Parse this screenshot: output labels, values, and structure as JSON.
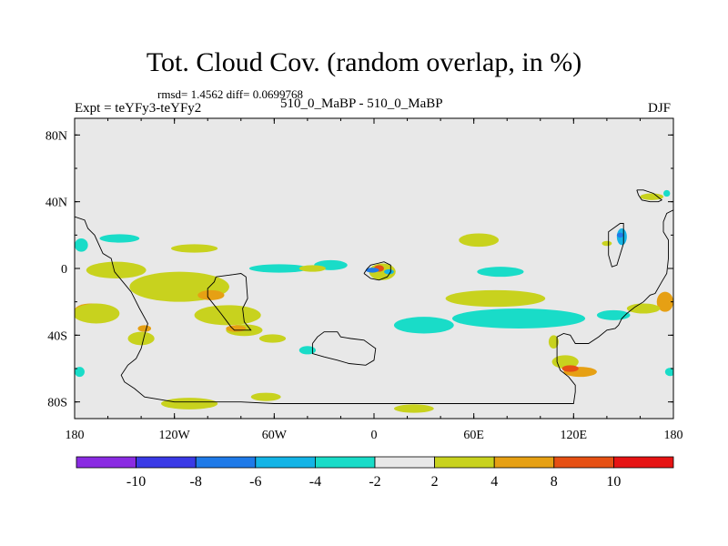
{
  "title": "Tot. Cloud Cov. (random overlap, in %)",
  "stats": "rmsd= 1.4562 diff= 0.0699768",
  "expt": "Expt = teYFy3-teYFy2",
  "case": "510_0_MaBP - 510_0_MaBP",
  "season": "DJF",
  "chart_data": {
    "type": "heatmap",
    "title": "Tot. Cloud Cov. (random overlap, in %)",
    "xlabel": "",
    "ylabel": "",
    "xlim": [
      -180,
      180
    ],
    "ylim": [
      -90,
      90
    ],
    "x_ticks": [
      {
        "value": -180,
        "label": "180"
      },
      {
        "value": -120,
        "label": "120W"
      },
      {
        "value": -60,
        "label": "60W"
      },
      {
        "value": 0,
        "label": "0"
      },
      {
        "value": 60,
        "label": "60E"
      },
      {
        "value": 120,
        "label": "120E"
      },
      {
        "value": 180,
        "label": "180"
      }
    ],
    "y_ticks": [
      {
        "value": 80,
        "label": "80N"
      },
      {
        "value": 40,
        "label": "40N"
      },
      {
        "value": 0,
        "label": "0"
      },
      {
        "value": -40,
        "label": "40S"
      },
      {
        "value": -80,
        "label": "80S"
      }
    ],
    "background_color": "#e8e8e8",
    "colorbar": {
      "colors": [
        "#8a2be2",
        "#3a3ae6",
        "#1f7ae8",
        "#14b4e6",
        "#19dcc8",
        "#e8e8e8",
        "#c8d21e",
        "#e6a014",
        "#e65014",
        "#e61414"
      ],
      "labels": [
        "-10",
        "-8",
        "-6",
        "-4",
        "-2",
        "2",
        "4",
        "8",
        "10"
      ]
    },
    "anomaly_regions": [
      {
        "lon": -153,
        "lat": 18,
        "rx": 12,
        "ry": 2.5,
        "color": "#19dcc8"
      },
      {
        "lon": -176,
        "lat": 14,
        "rx": 4,
        "ry": 4,
        "color": "#19dcc8"
      },
      {
        "lon": -108,
        "lat": 12,
        "rx": 14,
        "ry": 2.5,
        "color": "#c8d21e"
      },
      {
        "lon": -155,
        "lat": -1,
        "rx": 18,
        "ry": 5,
        "color": "#c8d21e"
      },
      {
        "lon": -117,
        "lat": -11,
        "rx": 30,
        "ry": 9,
        "color": "#c8d21e"
      },
      {
        "lon": -88,
        "lat": -28,
        "rx": 20,
        "ry": 6,
        "color": "#c8d21e"
      },
      {
        "lon": -78,
        "lat": -37,
        "rx": 11,
        "ry": 3.5,
        "color": "#c8d21e"
      },
      {
        "lon": -98,
        "lat": -16,
        "rx": 8,
        "ry": 3,
        "color": "#e6a014"
      },
      {
        "lon": -61,
        "lat": -42,
        "rx": 8,
        "ry": 2.5,
        "color": "#c8d21e"
      },
      {
        "lon": -83,
        "lat": -36,
        "rx": 6,
        "ry": 2,
        "color": "#e6a014"
      },
      {
        "lon": -57,
        "lat": 0,
        "rx": 18,
        "ry": 2.5,
        "color": "#19dcc8"
      },
      {
        "lon": -26,
        "lat": 2,
        "rx": 10,
        "ry": 3,
        "color": "#19dcc8"
      },
      {
        "lon": -37,
        "lat": 0,
        "rx": 8,
        "ry": 2,
        "color": "#c8d21e"
      },
      {
        "lon": 5,
        "lat": -2,
        "rx": 8,
        "ry": 5,
        "color": "#c8d21e"
      },
      {
        "lon": 3,
        "lat": 0,
        "rx": 3,
        "ry": 2,
        "color": "#e65014"
      },
      {
        "lon": -1,
        "lat": -1,
        "rx": 4,
        "ry": 1.5,
        "color": "#1f7ae8"
      },
      {
        "lon": 9,
        "lat": -2,
        "rx": 3,
        "ry": 1.5,
        "color": "#14b4e6"
      },
      {
        "lon": 76,
        "lat": -2,
        "rx": 14,
        "ry": 3,
        "color": "#19dcc8"
      },
      {
        "lon": 73,
        "lat": -18,
        "rx": 30,
        "ry": 5,
        "color": "#c8d21e"
      },
      {
        "lon": 63,
        "lat": 17,
        "rx": 12,
        "ry": 4,
        "color": "#c8d21e"
      },
      {
        "lon": 87,
        "lat": -30,
        "rx": 40,
        "ry": 6,
        "color": "#19dcc8"
      },
      {
        "lon": 30,
        "lat": -34,
        "rx": 18,
        "ry": 5,
        "color": "#19dcc8"
      },
      {
        "lon": -40,
        "lat": -49,
        "rx": 5,
        "ry": 2.5,
        "color": "#19dcc8"
      },
      {
        "lon": -65,
        "lat": -77,
        "rx": 9,
        "ry": 2.5,
        "color": "#c8d21e"
      },
      {
        "lon": -111,
        "lat": -81,
        "rx": 17,
        "ry": 3.5,
        "color": "#c8d21e"
      },
      {
        "lon": 24,
        "lat": -84,
        "rx": 12,
        "ry": 2.5,
        "color": "#c8d21e"
      },
      {
        "lon": -170,
        "lat": -25,
        "rx": 10,
        "ry": 4,
        "color": "#e6a014"
      },
      {
        "lon": -167,
        "lat": -27,
        "rx": 14,
        "ry": 6,
        "color": "#c8d21e"
      },
      {
        "lon": -140,
        "lat": -42,
        "rx": 8,
        "ry": 4,
        "color": "#c8d21e"
      },
      {
        "lon": -138,
        "lat": -36,
        "rx": 4,
        "ry": 2,
        "color": "#e6a014"
      },
      {
        "lon": 108,
        "lat": -44,
        "rx": 3,
        "ry": 4,
        "color": "#c8d21e"
      },
      {
        "lon": 115,
        "lat": -56,
        "rx": 8,
        "ry": 4,
        "color": "#c8d21e"
      },
      {
        "lon": 124,
        "lat": -62,
        "rx": 10,
        "ry": 3,
        "color": "#e6a014"
      },
      {
        "lon": 118,
        "lat": -60,
        "rx": 5,
        "ry": 2,
        "color": "#e65014"
      },
      {
        "lon": 144,
        "lat": -28,
        "rx": 10,
        "ry": 3,
        "color": "#19dcc8"
      },
      {
        "lon": 175,
        "lat": -20,
        "rx": 5,
        "ry": 6,
        "color": "#e6a014"
      },
      {
        "lon": 162,
        "lat": -24,
        "rx": 10,
        "ry": 3,
        "color": "#c8d21e"
      },
      {
        "lon": 149,
        "lat": 19,
        "rx": 3,
        "ry": 5,
        "color": "#14b4e6"
      },
      {
        "lon": 148,
        "lat": 20,
        "rx": 2,
        "ry": 1.5,
        "color": "#1f7ae8"
      },
      {
        "lon": 140,
        "lat": 15,
        "rx": 3,
        "ry": 1.5,
        "color": "#c8d21e"
      },
      {
        "lon": 167,
        "lat": 43,
        "rx": 7,
        "ry": 2,
        "color": "#c8d21e"
      },
      {
        "lon": 176,
        "lat": 45,
        "rx": 2,
        "ry": 2,
        "color": "#19dcc8"
      },
      {
        "lon": 178,
        "lat": -62,
        "rx": 3,
        "ry": 2.5,
        "color": "#19dcc8"
      },
      {
        "lon": -177,
        "lat": -62,
        "rx": 3,
        "ry": 3,
        "color": "#19dcc8"
      }
    ],
    "coastlines": [
      [
        [
          -180,
          31
        ],
        [
          -174,
          29
        ],
        [
          -172,
          24
        ],
        [
          -168,
          20
        ],
        [
          -163,
          9
        ],
        [
          -158,
          6
        ],
        [
          -156,
          -2
        ],
        [
          -151,
          -8
        ],
        [
          -146,
          -14
        ],
        [
          -141,
          -24
        ],
        [
          -136,
          -33
        ],
        [
          -138,
          -40
        ],
        [
          -140,
          -48
        ],
        [
          -143,
          -54
        ],
        [
          -148,
          -58
        ],
        [
          -152,
          -64
        ],
        [
          -150,
          -68
        ],
        [
          -144,
          -72
        ],
        [
          -138,
          -77
        ],
        [
          -120,
          -80
        ],
        [
          -80,
          -80
        ],
        [
          -60,
          -81
        ],
        [
          -20,
          -81
        ],
        [
          30,
          -81
        ],
        [
          80,
          -81
        ],
        [
          120,
          -81
        ],
        [
          121,
          -74
        ],
        [
          121,
          -70
        ],
        [
          117,
          -65
        ],
        [
          112,
          -61
        ],
        [
          110,
          -56
        ],
        [
          110,
          -48
        ],
        [
          110,
          -41
        ],
        [
          114,
          -39
        ],
        [
          118,
          -40
        ],
        [
          121,
          -45
        ],
        [
          129,
          -45
        ],
        [
          135,
          -41
        ],
        [
          140,
          -37
        ],
        [
          145,
          -36
        ],
        [
          147,
          -34
        ],
        [
          149,
          -30
        ],
        [
          152,
          -27
        ],
        [
          157,
          -23
        ],
        [
          162,
          -20
        ],
        [
          166,
          -16
        ],
        [
          169,
          -15
        ],
        [
          173,
          -8
        ],
        [
          176,
          -3
        ],
        [
          177,
          6
        ],
        [
          177,
          17
        ],
        [
          174,
          22
        ],
        [
          174,
          28
        ],
        [
          176,
          33
        ],
        [
          180,
          35
        ]
      ],
      [
        [
          -95,
          -5
        ],
        [
          -87,
          -4
        ],
        [
          -80,
          -3
        ],
        [
          -77,
          -5
        ],
        [
          -76,
          -18
        ],
        [
          -79,
          -24
        ],
        [
          -78,
          -32
        ],
        [
          -74,
          -37
        ],
        [
          -79,
          -37
        ],
        [
          -84,
          -37
        ],
        [
          -86,
          -35
        ],
        [
          -89,
          -31
        ],
        [
          -92,
          -27
        ],
        [
          -96,
          -22
        ],
        [
          -100,
          -17
        ],
        [
          -100,
          -12
        ],
        [
          -96,
          -8
        ],
        [
          -95,
          -5
        ]
      ],
      [
        [
          -37,
          -45
        ],
        [
          -37,
          -51
        ],
        [
          -30,
          -53
        ],
        [
          -22,
          -55
        ],
        [
          -15,
          -57
        ],
        [
          -5,
          -58
        ],
        [
          0,
          -55
        ],
        [
          1,
          -48
        ],
        [
          -6,
          -43
        ],
        [
          -14,
          -42
        ],
        [
          -20,
          -41
        ],
        [
          -22,
          -38
        ],
        [
          -30,
          -38
        ],
        [
          -34,
          -41
        ],
        [
          -37,
          -45
        ]
      ],
      [
        [
          -6,
          -3
        ],
        [
          -4,
          0
        ],
        [
          -2,
          2
        ],
        [
          2,
          3
        ],
        [
          6,
          4
        ],
        [
          10,
          2
        ],
        [
          10,
          -2
        ],
        [
          8,
          -5
        ],
        [
          3,
          -7
        ],
        [
          -2,
          -6
        ],
        [
          -6,
          -3
        ]
      ],
      [
        [
          141,
          8
        ],
        [
          141,
          22
        ],
        [
          148,
          27
        ],
        [
          150,
          27
        ],
        [
          150,
          15
        ],
        [
          146,
          2
        ],
        [
          143,
          1
        ],
        [
          141,
          8
        ]
      ],
      [
        [
          158,
          47
        ],
        [
          159,
          44
        ],
        [
          161,
          41
        ],
        [
          166,
          40
        ],
        [
          171,
          40
        ],
        [
          173,
          41
        ],
        [
          168,
          45
        ],
        [
          162,
          47
        ],
        [
          158,
          47
        ]
      ]
    ]
  }
}
